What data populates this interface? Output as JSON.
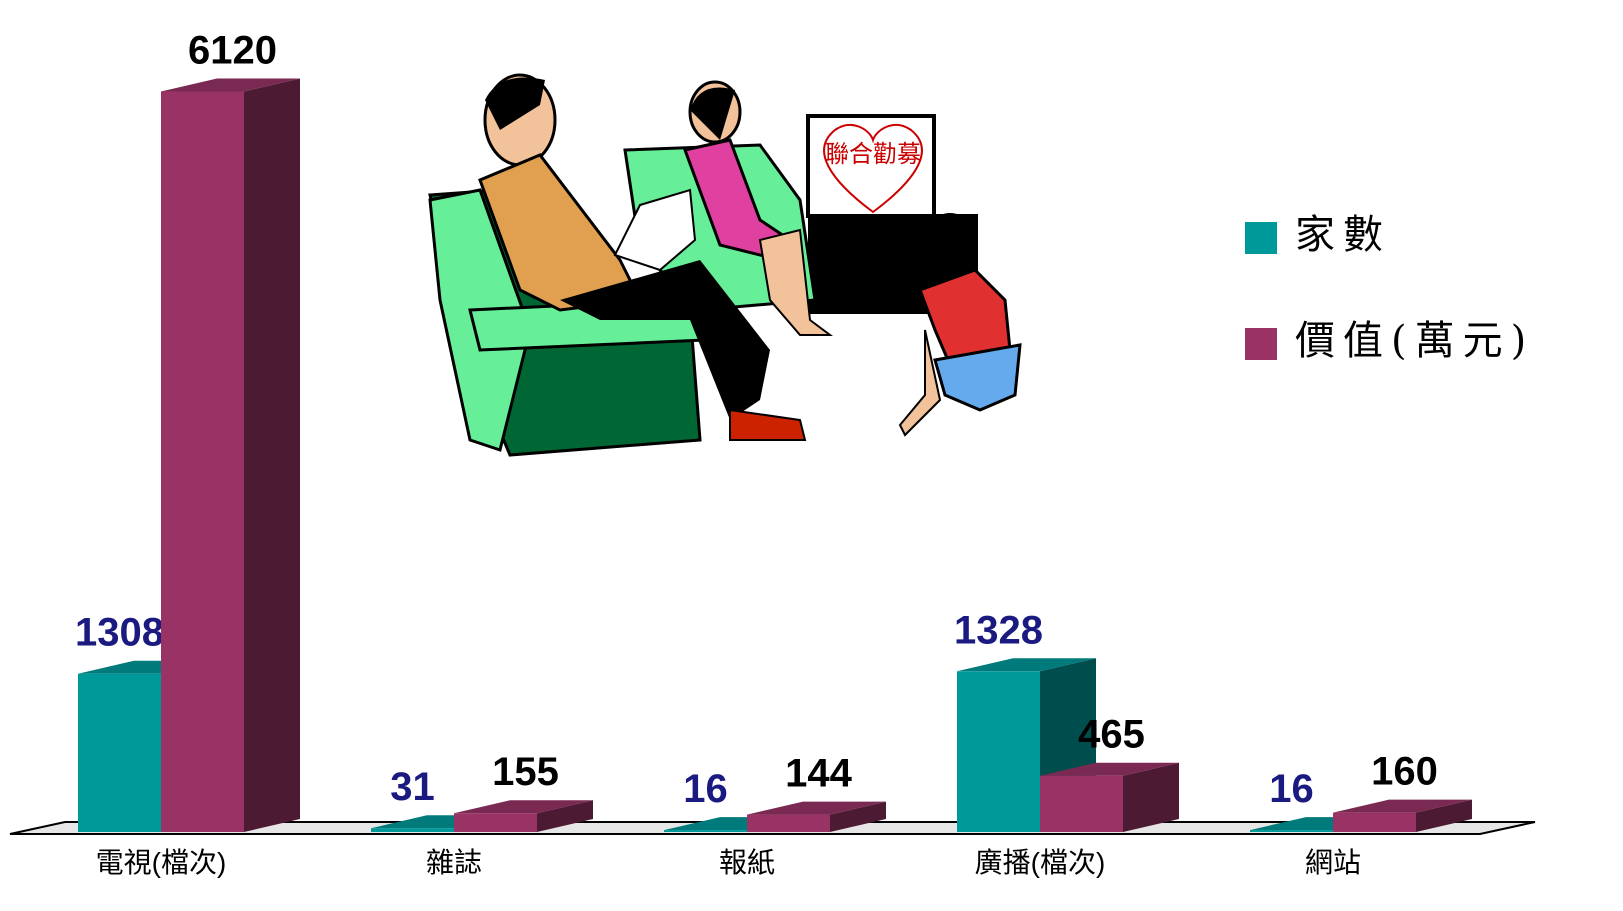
{
  "chart_data": {
    "type": "bar3d",
    "categories": [
      "電視(檔次)",
      "雜誌",
      "報紙",
      "廣播(檔次)",
      "網站"
    ],
    "series": [
      {
        "name": "家數",
        "color": "#009999",
        "label_color": "#1a1a80",
        "values": [
          1308,
          31,
          16,
          1328,
          16
        ]
      },
      {
        "name": "價值(萬元)",
        "color": "#993366",
        "label_color": "#000000",
        "values": [
          6120,
          155,
          144,
          465,
          160
        ]
      }
    ],
    "legend": "right",
    "illustration_text": "聯合勸募"
  }
}
